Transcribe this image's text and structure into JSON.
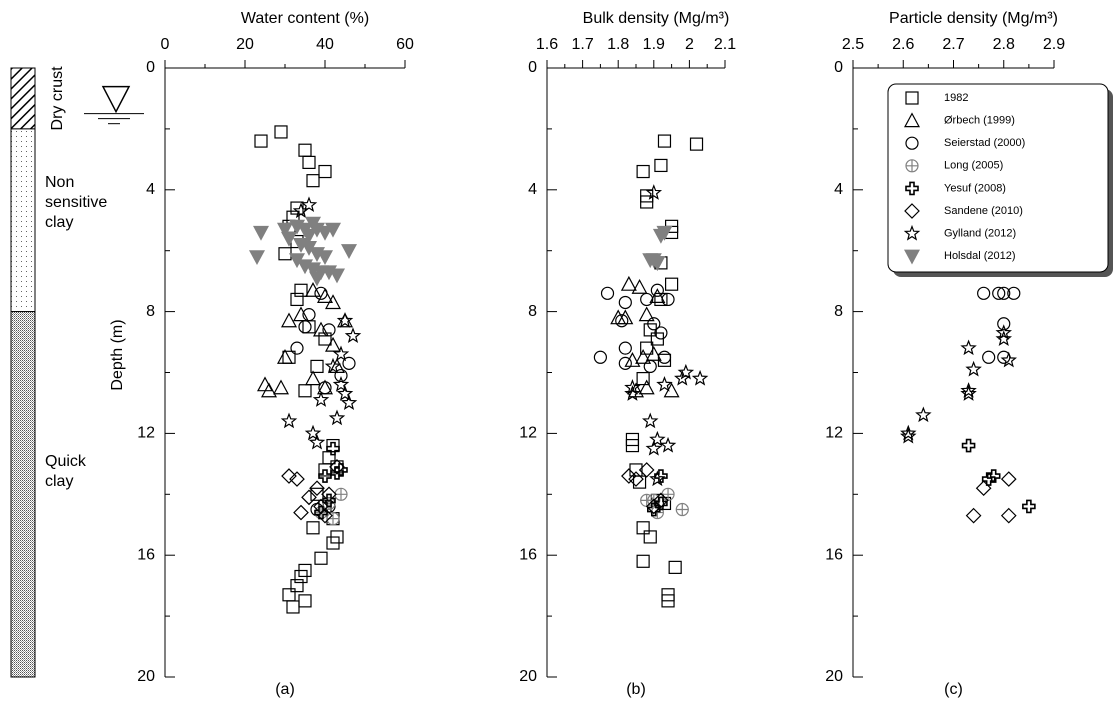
{
  "chart_data": [
    {
      "type": "scatter",
      "title": "Water content (%)",
      "ylabel": "Depth (m)",
      "caption": "(a)",
      "xlim": [
        0,
        60
      ],
      "xticks": [
        0,
        20,
        40,
        60
      ],
      "xticks_minor": [
        10,
        30,
        50
      ],
      "ylim": [
        0,
        20
      ],
      "yticks": [
        0,
        4,
        8,
        12,
        16,
        20
      ],
      "yticks_minor": [
        2,
        6,
        10,
        14,
        18
      ],
      "y_inverted": true,
      "series": [
        {
          "marker": "square",
          "color": "#000000",
          "x": [
            24,
            29,
            35,
            36,
            40,
            37,
            33,
            32,
            31,
            30,
            33,
            34,
            33,
            36,
            40,
            31,
            38,
            35,
            42,
            41,
            40,
            43,
            38,
            40,
            42,
            37,
            43,
            42,
            39,
            35,
            34,
            33,
            31,
            35,
            32
          ],
          "y": [
            2.4,
            2.1,
            2.7,
            3.1,
            3.4,
            3.7,
            4.6,
            4.9,
            5.2,
            6.1,
            5.7,
            7.3,
            7.6,
            8.5,
            8.9,
            9.5,
            9.8,
            10.6,
            12.4,
            12.8,
            13.2,
            13.1,
            14.0,
            14.4,
            14.8,
            15.1,
            15.4,
            15.6,
            16.1,
            16.5,
            16.7,
            17.0,
            17.3,
            17.5,
            17.7
          ]
        },
        {
          "marker": "triangle",
          "color": "#000000",
          "x": [
            37,
            40,
            42,
            34,
            31,
            45,
            39,
            42,
            30,
            43,
            25,
            26,
            29,
            37,
            40
          ],
          "y": [
            7.3,
            7.5,
            7.7,
            8.1,
            8.3,
            8.3,
            8.6,
            9.1,
            9.5,
            9.8,
            10.4,
            10.6,
            10.5,
            10.2,
            10.5
          ]
        },
        {
          "marker": "circle",
          "color": "#000000",
          "x": [
            39,
            36,
            35,
            41,
            46,
            33,
            40,
            44,
            41,
            38
          ],
          "y": [
            7.4,
            8.1,
            8.5,
            8.6,
            9.7,
            9.2,
            10.5,
            10.1,
            14.4,
            14.5
          ]
        },
        {
          "marker": "circleplus",
          "color": "#808080",
          "x": [
            44,
            41,
            39,
            42
          ],
          "y": [
            14.0,
            14.3,
            14.6,
            14.8
          ]
        },
        {
          "marker": "plus",
          "color": "#000000",
          "x": [
            42,
            43,
            40,
            44,
            41,
            39
          ],
          "y": [
            12.5,
            13.3,
            13.4,
            13.2,
            14.2,
            14.6
          ]
        },
        {
          "marker": "diamond",
          "color": "#000000",
          "x": [
            33,
            31,
            43,
            38,
            36,
            34,
            41,
            39,
            40
          ],
          "y": [
            13.5,
            13.4,
            13.1,
            13.8,
            14.1,
            14.6,
            14.0,
            14.4,
            14.7
          ]
        },
        {
          "marker": "star",
          "color": "#000000",
          "x": [
            36,
            34,
            47,
            45,
            44,
            42,
            46,
            45,
            43,
            31,
            37,
            38,
            44,
            39
          ],
          "y": [
            4.5,
            4.7,
            8.8,
            8.3,
            9.4,
            9.8,
            11.0,
            10.7,
            11.5,
            11.6,
            12.0,
            12.3,
            10.4,
            10.9
          ]
        },
        {
          "marker": "invtriangle",
          "color": "#808080",
          "x": [
            24,
            23,
            30,
            33,
            35,
            36,
            38,
            40,
            34,
            36,
            38,
            40,
            33,
            35,
            37,
            39,
            41,
            46,
            42,
            43,
            38,
            31,
            37
          ],
          "y": [
            5.4,
            6.2,
            5.3,
            5.2,
            5.3,
            5.5,
            5.3,
            5.4,
            5.8,
            5.9,
            6.1,
            6.2,
            6.3,
            6.5,
            6.6,
            6.7,
            6.7,
            6.0,
            5.3,
            6.8,
            6.9,
            5.6,
            5.1
          ]
        }
      ]
    },
    {
      "type": "scatter",
      "title": "Bulk density (Mg/m³)",
      "caption": "(b)",
      "xlim": [
        1.6,
        2.1
      ],
      "xticks": [
        1.6,
        1.7,
        1.8,
        1.9,
        2,
        2.1
      ],
      "xticks_minor": [
        1.65,
        1.75,
        1.85,
        1.95,
        2.05
      ],
      "ylim": [
        0,
        20
      ],
      "yticks": [
        0,
        4,
        8,
        12,
        16,
        20
      ],
      "yticks_minor": [
        2,
        6,
        10,
        14,
        18
      ],
      "y_inverted": true,
      "series": [
        {
          "marker": "square",
          "color": "#000000",
          "x": [
            1.93,
            2.02,
            1.92,
            1.87,
            1.88,
            1.88,
            1.95,
            1.95,
            1.92,
            1.95,
            1.92,
            1.89,
            1.91,
            1.88,
            1.93,
            1.87,
            1.84,
            1.84,
            1.85,
            1.86,
            1.91,
            1.93,
            1.87,
            1.89,
            1.87,
            1.96,
            1.94,
            1.94
          ],
          "y": [
            2.4,
            2.5,
            3.2,
            3.4,
            4.2,
            4.4,
            5.2,
            5.4,
            6.4,
            7.1,
            7.6,
            8.6,
            8.9,
            9.2,
            9.6,
            10.2,
            12.2,
            12.4,
            13.2,
            13.6,
            14.2,
            14.3,
            15.1,
            15.4,
            16.2,
            16.4,
            17.3,
            17.5
          ]
        },
        {
          "marker": "triangle",
          "color": "#000000",
          "x": [
            1.83,
            1.86,
            1.8,
            1.82,
            1.88,
            1.91,
            1.84,
            1.87,
            1.9,
            1.95,
            1.88,
            1.85
          ],
          "y": [
            7.1,
            7.2,
            8.2,
            8.2,
            8.1,
            7.5,
            9.6,
            9.5,
            9.4,
            10.6,
            10.5,
            10.6
          ]
        },
        {
          "marker": "circle",
          "color": "#000000",
          "x": [
            1.77,
            1.82,
            1.88,
            1.91,
            1.94,
            1.81,
            1.9,
            1.92,
            1.75,
            1.82,
            1.89,
            1.93,
            1.82
          ],
          "y": [
            7.4,
            7.7,
            7.6,
            7.3,
            7.6,
            8.3,
            8.4,
            8.7,
            9.5,
            9.2,
            9.8,
            9.5,
            9.7
          ]
        },
        {
          "marker": "circleplus",
          "color": "#808080",
          "x": [
            1.88,
            1.9,
            1.94,
            1.98,
            1.91
          ],
          "y": [
            14.2,
            14.2,
            14.0,
            14.5,
            14.6
          ]
        },
        {
          "marker": "plus",
          "color": "#000000",
          "x": [
            1.92,
            1.92,
            1.9
          ],
          "y": [
            13.4,
            14.3,
            14.5
          ]
        },
        {
          "marker": "diamond",
          "color": "#000000",
          "x": [
            1.83,
            1.85,
            1.92,
            1.9,
            1.88
          ],
          "y": [
            13.4,
            13.5,
            14.2,
            14.4,
            13.2
          ]
        },
        {
          "marker": "star",
          "color": "#000000",
          "x": [
            1.9,
            1.89,
            1.91,
            1.9,
            1.94,
            1.84,
            1.84,
            1.93,
            1.98,
            2.03,
            1.99,
            1.91
          ],
          "y": [
            4.1,
            11.6,
            12.2,
            12.5,
            12.4,
            10.5,
            10.7,
            10.4,
            10.2,
            10.2,
            10.0,
            13.5
          ]
        },
        {
          "marker": "invtriangle",
          "color": "#808080",
          "x": [
            1.93,
            1.92,
            1.9,
            1.91,
            1.89
          ],
          "y": [
            5.4,
            5.5,
            6.3,
            6.4,
            6.3
          ]
        }
      ]
    },
    {
      "type": "scatter",
      "title": "Particle density (Mg/m³)",
      "caption": "(c)",
      "xlim": [
        2.5,
        2.9
      ],
      "xticks": [
        2.5,
        2.6,
        2.7,
        2.8,
        2.9
      ],
      "xticks_minor": [
        2.55,
        2.65,
        2.75,
        2.85
      ],
      "ylim": [
        0,
        20
      ],
      "yticks": [
        0,
        4,
        8,
        12,
        16,
        20
      ],
      "yticks_minor": [
        2,
        6,
        10,
        14,
        18
      ],
      "y_inverted": true,
      "legend": "upper right",
      "series": [
        {
          "name": "1982",
          "marker": "square",
          "color": "#000000",
          "x": [],
          "y": []
        },
        {
          "name": "Ørbech (1999)",
          "marker": "triangle",
          "color": "#000000",
          "x": [],
          "y": []
        },
        {
          "name": "Seierstad (2000)",
          "marker": "circle",
          "color": "#000000",
          "x": [
            2.76,
            2.79,
            2.8,
            2.82,
            2.8,
            2.77,
            2.8
          ],
          "y": [
            7.4,
            7.4,
            7.4,
            7.4,
            8.4,
            9.5,
            9.5
          ]
        },
        {
          "name": "Long (2005)",
          "marker": "circleplus",
          "color": "#808080",
          "x": [],
          "y": []
        },
        {
          "name": "Yesuf (2008)",
          "marker": "plus",
          "color": "#000000",
          "x": [
            2.73,
            2.78,
            2.77,
            2.85
          ],
          "y": [
            12.4,
            13.4,
            13.5,
            14.4
          ]
        },
        {
          "name": "Sandene (2010)",
          "marker": "diamond",
          "color": "#000000",
          "x": [
            2.76,
            2.81,
            2.74,
            2.81
          ],
          "y": [
            13.8,
            13.5,
            14.7,
            14.7
          ]
        },
        {
          "name": "Gylland (2012)",
          "marker": "star",
          "color": "#000000",
          "x": [
            2.8,
            2.8,
            2.73,
            2.81,
            2.74,
            2.73,
            2.73,
            2.64,
            2.61,
            2.61
          ],
          "y": [
            8.7,
            8.9,
            9.2,
            9.6,
            9.9,
            10.6,
            10.7,
            11.4,
            12.0,
            12.1
          ]
        },
        {
          "name": "Holsdal (2012)",
          "marker": "invtriangle",
          "color": "#808080",
          "x": [],
          "y": []
        }
      ]
    }
  ],
  "soil_profile": {
    "water_table_depth": 1.5,
    "layers": [
      {
        "label": "Dry crust",
        "top": 0,
        "bottom": 2,
        "pattern": "hatch"
      },
      {
        "label": "Non sensitive clay",
        "top": 2,
        "bottom": 8,
        "pattern": "sparse-dots"
      },
      {
        "label": "Quick clay",
        "top": 8,
        "bottom": 20,
        "pattern": "dense-dots"
      }
    ]
  }
}
